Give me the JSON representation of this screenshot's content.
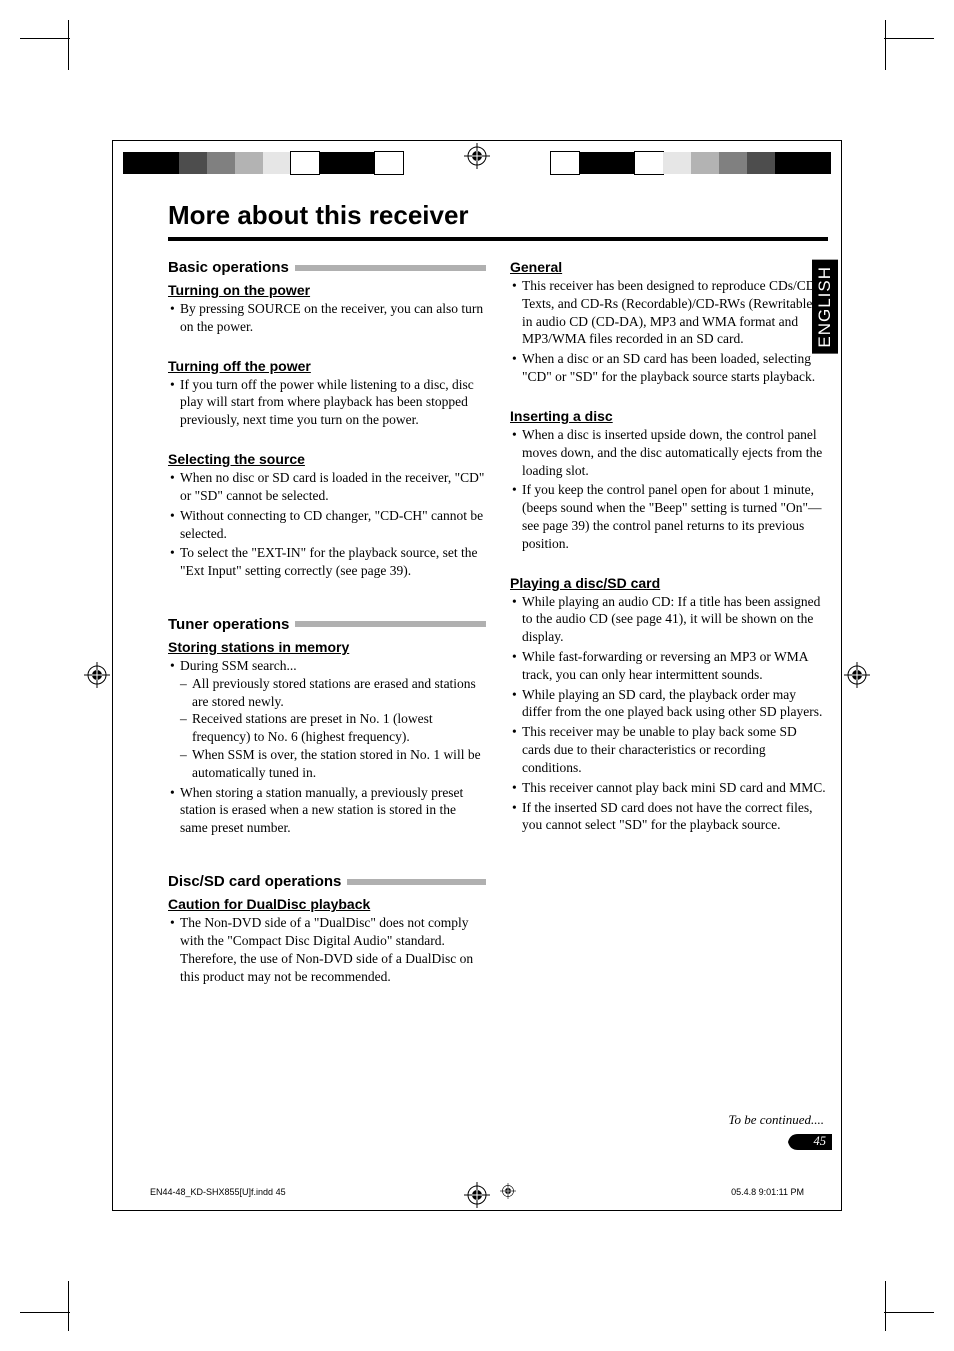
{
  "page_title": "More about this receiver",
  "side_tab": "ENGLISH",
  "continued_text": "To be continued....",
  "page_number": "45",
  "footer_left": "EN44-48_KD-SHX855[U]f.indd   45",
  "footer_right": "05.4.8   9:01:11 PM",
  "color_bar_left": [
    "#000000",
    "#000000",
    "#4d4d4d",
    "#808080",
    "#b3b3b3",
    "#e6e6e6",
    "#ffffff",
    "#000000",
    "#000000",
    "#ffffff"
  ],
  "color_bar_right": [
    "#ffffff",
    "#000000",
    "#000000",
    "#ffffff",
    "#e6e6e6",
    "#b3b3b3",
    "#808080",
    "#4d4d4d",
    "#000000",
    "#000000"
  ],
  "left_col": {
    "basic_ops": {
      "heading": "Basic operations",
      "turning_on": {
        "heading": "Turning on the power",
        "items": [
          "By pressing SOURCE on the receiver, you can also turn on the power."
        ]
      },
      "turning_off": {
        "heading": "Turning off the power",
        "items": [
          "If you turn off the power while listening to a disc, disc play will start from where playback has been stopped previously, next time you turn on the power."
        ]
      },
      "selecting": {
        "heading": "Selecting the source",
        "items": [
          "When no disc or SD card is loaded in the receiver, \"CD\" or \"SD\" cannot be selected.",
          "Without connecting to CD changer, \"CD-CH\" cannot be selected.",
          "To select the \"EXT-IN\" for the playback source, set the \"Ext Input\" setting correctly (see page 39)."
        ]
      }
    },
    "tuner_ops": {
      "heading": "Tuner operations",
      "storing": {
        "heading": "Storing stations in memory",
        "items": [
          {
            "text": "During SSM search...",
            "sub": [
              "All previously stored stations are erased and stations are stored newly.",
              "Received stations are preset in No. 1 (lowest frequency) to No. 6 (highest frequency).",
              "When SSM is over, the station stored in No. 1 will be automatically tuned in."
            ]
          },
          {
            "text": "When storing a station manually, a previously preset station is erased when a new station is stored in the same preset number."
          }
        ]
      }
    },
    "disc_ops": {
      "heading": "Disc/SD card operations",
      "caution": {
        "heading": "Caution for DualDisc playback",
        "items": [
          "The Non-DVD side of a \"DualDisc\" does not comply with the \"Compact Disc Digital Audio\" standard. Therefore, the use of Non-DVD side of a DualDisc on this product may not be recommended."
        ]
      }
    }
  },
  "right_col": {
    "general": {
      "heading": "General",
      "items": [
        "This receiver has been designed to reproduce CDs/CD Texts, and CD-Rs (Recordable)/CD-RWs (Rewritable) in audio CD (CD-DA), MP3 and WMA format and MP3/WMA files recorded in an SD card.",
        "When a disc or an SD card has been loaded, selecting \"CD\" or \"SD\" for the playback source starts playback."
      ]
    },
    "inserting": {
      "heading": "Inserting a disc",
      "items": [
        "When a disc is inserted upside down, the control panel moves down, and the disc automatically ejects from the loading slot.",
        "If you keep the control panel open for about 1 minute, (beeps sound when the \"Beep\" setting is turned \"On\"—see page 39) the control panel returns to its previous position."
      ]
    },
    "playing": {
      "heading": "Playing a disc/SD card",
      "items": [
        "While playing an audio CD: If a title has been assigned to the audio CD (see page 41), it will be shown on the display.",
        "While fast-forwarding or reversing an MP3 or WMA track, you can only hear intermittent sounds.",
        "While playing an SD card, the playback order may differ from the one played back using other SD players.",
        "This receiver may be unable to play back some SD cards due to their characteristics or recording conditions.",
        "This receiver cannot play back mini SD card and MMC.",
        "If the inserted SD card does not have the correct files, you cannot select \"SD\" for the playback source."
      ]
    }
  }
}
